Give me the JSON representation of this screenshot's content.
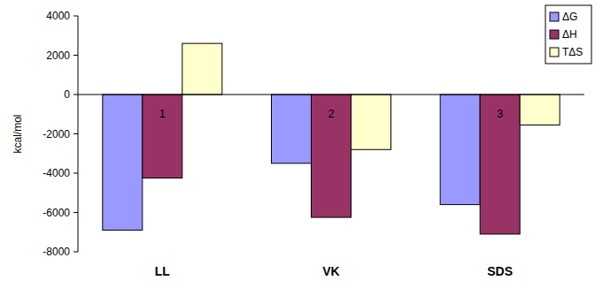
{
  "chart_data": {
    "type": "bar",
    "y_label": "kcal/mol",
    "categories": [
      "LL",
      "VK",
      "SDS"
    ],
    "series": [
      {
        "name": "ΔG",
        "color": "#9999ff",
        "values": [
          -6900,
          -3500,
          -5600
        ]
      },
      {
        "name": "ΔH",
        "color": "#993366",
        "values": [
          -4250,
          -6250,
          -7100
        ]
      },
      {
        "name": "TΔS",
        "color": "#ffffcc",
        "values": [
          2600,
          -2800,
          -1550
        ]
      }
    ],
    "annotations": [
      "1",
      "2",
      "3"
    ],
    "ylim": [
      -8000,
      4000
    ],
    "yticks": [
      -8000,
      -6000,
      -4000,
      -2000,
      0,
      2000,
      4000
    ],
    "grid": false,
    "legend": "top-right"
  }
}
